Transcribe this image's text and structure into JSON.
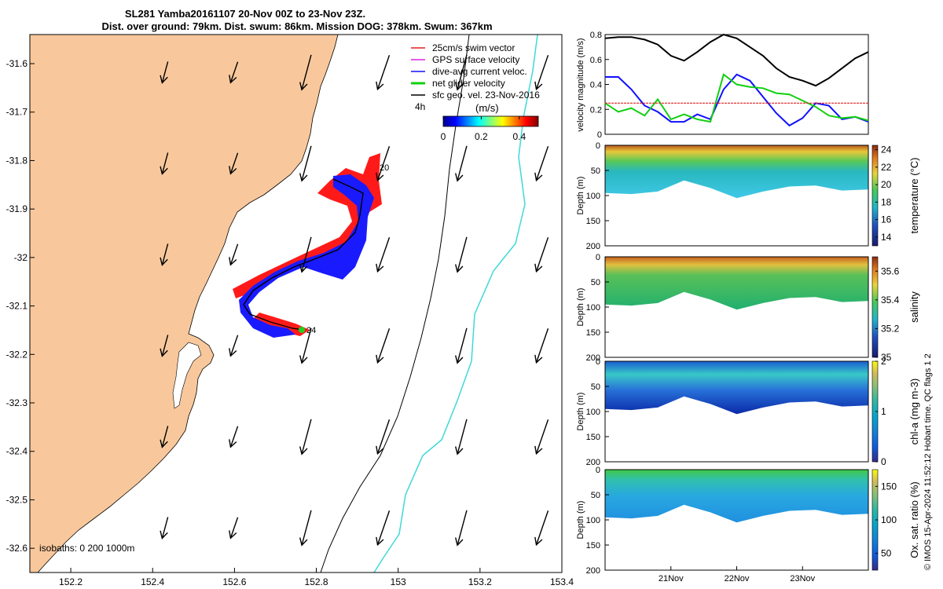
{
  "title": {
    "line1": "SL281 Yamba20161107 20-Nov 00Z to 23-Nov 23Z.",
    "line2": "Dist. over ground: 79km. Dist. swum: 86km. Mission DOG: 378km. Swum: 367km"
  },
  "chart_data": [
    {
      "type": "map",
      "x_ticks": [
        "152.2",
        "152.4",
        "152.6",
        "152.8",
        "153",
        "153.2",
        "153.4"
      ],
      "y_ticks": [
        "-31.6",
        "-31.7",
        "-31.8",
        "-31.9",
        "-32",
        "-32.1",
        "-32.2",
        "-32.3",
        "-32.4",
        "-32.5",
        "-32.6"
      ],
      "xlim": [
        152.1,
        153.4
      ],
      "ylim": [
        -32.65,
        -31.54
      ],
      "legend": {
        "placement": "top-right",
        "items": [
          {
            "label": "25cm/s swim vector",
            "color": "#e02020"
          },
          {
            "label": "GPS surface velocity",
            "color": "#e020e0"
          },
          {
            "label": "dive-avg current veloc.",
            "color": "#1010ff"
          },
          {
            "label": "net glider velocity",
            "color": "#10d010"
          },
          {
            "label": "sfc geo. vel. 23-Nov-2016",
            "color": "#000000"
          }
        ]
      },
      "colorbar": {
        "title": "(m/s)",
        "label_left": "4h",
        "ticks": [
          "0",
          "0.2",
          "0.4"
        ],
        "range": [
          0,
          0.5
        ]
      },
      "annotations": [
        "20",
        "24"
      ],
      "isobath_text": "isobaths: 0   200  1000m",
      "land_color": "#f8c89c",
      "isobath_200_color": "#000000",
      "isobath_1000_color": "#40d8d8"
    },
    {
      "type": "line",
      "ylabel": "velocity magnitude (m/s)",
      "ylim": [
        0,
        0.8
      ],
      "yticks": [
        "0",
        "0.2",
        "0.4",
        "0.6",
        "0.8"
      ],
      "x": [
        0,
        0.05,
        0.1,
        0.15,
        0.2,
        0.25,
        0.3,
        0.35,
        0.4,
        0.45,
        0.5,
        0.55,
        0.6,
        0.65,
        0.7,
        0.75,
        0.8,
        0.85,
        0.9,
        0.95,
        1
      ],
      "series": [
        {
          "name": "sfc geo. velocity",
          "color": "#000000",
          "values": [
            0.77,
            0.78,
            0.78,
            0.76,
            0.72,
            0.63,
            0.59,
            0.66,
            0.74,
            0.8,
            0.77,
            0.7,
            0.63,
            0.53,
            0.46,
            0.43,
            0.39,
            0.45,
            0.53,
            0.61,
            0.66
          ]
        },
        {
          "name": "dive-avg current",
          "color": "#1010ff",
          "values": [
            0.46,
            0.46,
            0.36,
            0.23,
            0.18,
            0.1,
            0.1,
            0.16,
            0.12,
            0.36,
            0.48,
            0.43,
            0.3,
            0.17,
            0.07,
            0.13,
            0.25,
            0.23,
            0.12,
            0.14,
            0.1
          ]
        },
        {
          "name": "net glider velocity",
          "color": "#10d010",
          "values": [
            0.25,
            0.18,
            0.21,
            0.15,
            0.28,
            0.12,
            0.16,
            0.12,
            0.1,
            0.48,
            0.4,
            0.38,
            0.37,
            0.33,
            0.32,
            0.27,
            0.22,
            0.15,
            0.13,
            0.14,
            0.11
          ]
        },
        {
          "name": "swim vector",
          "color": "#e02020",
          "values": [
            0.25,
            0.25,
            0.25,
            0.25,
            0.25,
            0.25,
            0.25,
            0.25,
            0.25,
            0.25,
            0.25,
            0.25,
            0.25,
            0.25,
            0.25,
            0.25,
            0.25,
            0.25,
            0.25,
            0.25,
            0.25
          ]
        }
      ]
    },
    {
      "type": "heatmap",
      "variable": "temperature (°C)",
      "ylabel": "Depth (m)",
      "ylim": [
        0,
        200
      ],
      "yticks": [
        "0",
        "50",
        "100",
        "150",
        "200"
      ],
      "cbar_ticks": [
        "14",
        "16",
        "18",
        "20",
        "22",
        "24"
      ],
      "cbar_range": [
        13,
        24.5
      ],
      "x": [
        0,
        0.1,
        0.2,
        0.3,
        0.4,
        0.5,
        0.6,
        0.7,
        0.8,
        0.9,
        1
      ],
      "bottom_depth": [
        95,
        97,
        92,
        70,
        85,
        105,
        92,
        82,
        80,
        90,
        88
      ],
      "surface_value": 23.5,
      "bottom_value": 15.5
    },
    {
      "type": "heatmap",
      "variable": "salinity",
      "ylabel": "Depth (m)",
      "ylim": [
        0,
        200
      ],
      "yticks": [
        "0",
        "50",
        "100",
        "150",
        "200"
      ],
      "cbar_ticks": [
        "35",
        "35.2",
        "35.4",
        "35.6"
      ],
      "cbar_range": [
        35,
        35.7
      ],
      "x": [
        0,
        0.1,
        0.2,
        0.3,
        0.4,
        0.5,
        0.6,
        0.7,
        0.8,
        0.9,
        1
      ],
      "bottom_depth": [
        95,
        97,
        92,
        70,
        85,
        105,
        92,
        82,
        80,
        90,
        88
      ],
      "surface_value": 35.6,
      "bottom_value": 35.35
    },
    {
      "type": "heatmap",
      "variable": "chl-a (mg m-3)",
      "ylabel": "Depth (m)",
      "ylim": [
        0,
        200
      ],
      "yticks": [
        "0",
        "50",
        "100",
        "150",
        "200"
      ],
      "cbar_ticks": [
        "0",
        "1",
        "2"
      ],
      "cbar_range": [
        0,
        2
      ],
      "x": [
        0,
        0.1,
        0.2,
        0.3,
        0.4,
        0.5,
        0.6,
        0.7,
        0.8,
        0.9,
        1
      ],
      "bottom_depth": [
        95,
        97,
        92,
        70,
        85,
        105,
        92,
        82,
        80,
        90,
        88
      ],
      "surface_value": 0.4,
      "bottom_value": 0.5
    },
    {
      "type": "heatmap",
      "variable": "Ox. sat. ratio (%)",
      "ylabel": "Depth (m)",
      "ylim": [
        0,
        200
      ],
      "yticks": [
        "0",
        "50",
        "100",
        "150",
        "200"
      ],
      "cbar_ticks": [
        "50",
        "100",
        "150"
      ],
      "cbar_range": [
        25,
        175
      ],
      "xticks": [
        "21Nov",
        "22Nov",
        "23Nov"
      ],
      "x": [
        0,
        0.1,
        0.2,
        0.3,
        0.4,
        0.5,
        0.6,
        0.7,
        0.8,
        0.9,
        1
      ],
      "bottom_depth": [
        95,
        97,
        92,
        70,
        85,
        105,
        92,
        82,
        80,
        90,
        88
      ],
      "surface_value": 125,
      "bottom_value": 85
    }
  ],
  "credit": "© IMOS 15-Apr-2024 11:52:12 Hobart time. QC flags 1  2"
}
